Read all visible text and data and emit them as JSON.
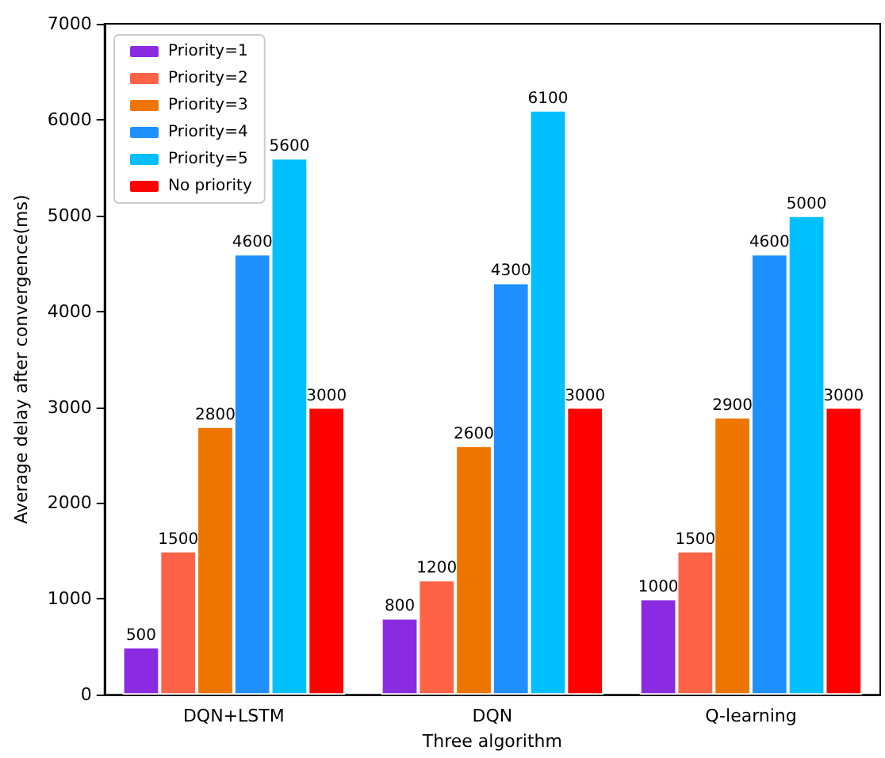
{
  "chart_data": {
    "type": "bar",
    "xlabel": "Three algorithm",
    "ylabel": "Average delay after convergence(ms)",
    "categories": [
      "DQN+LSTM",
      "DQN",
      "Q-learning"
    ],
    "series": [
      {
        "name": "Priority=1",
        "color": "#8a2be2",
        "values": [
          500,
          800,
          1000
        ]
      },
      {
        "name": "Priority=2",
        "color": "#ff6347",
        "values": [
          1500,
          1200,
          1500
        ]
      },
      {
        "name": "Priority=3",
        "color": "#ee7600",
        "values": [
          2800,
          2600,
          2900
        ]
      },
      {
        "name": "Priority=4",
        "color": "#1e90ff",
        "values": [
          4600,
          4300,
          4600
        ]
      },
      {
        "name": "Priority=5",
        "color": "#00bfff",
        "values": [
          5600,
          6100,
          5000
        ]
      },
      {
        "name": "No priority",
        "color": "#ff0000",
        "values": [
          3000,
          3000,
          3000
        ]
      }
    ],
    "ylim": [
      0,
      7000
    ],
    "yticks": [
      0,
      1000,
      2000,
      3000,
      4000,
      5000,
      6000,
      7000
    ],
    "grid": false,
    "legend": "top left",
    "data_labels": true
  }
}
